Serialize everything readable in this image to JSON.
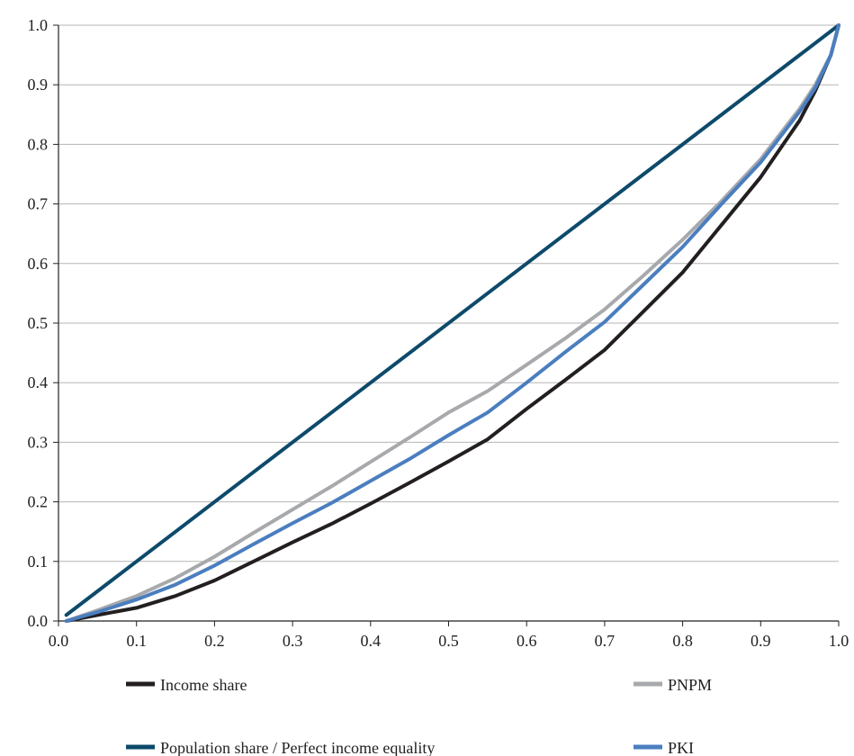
{
  "chart_data": {
    "type": "line",
    "title": "",
    "xlabel": "",
    "ylabel": "",
    "xlim": [
      0.0,
      1.0
    ],
    "ylim": [
      0.0,
      1.0
    ],
    "grid": "horizontal",
    "legend_position": "bottom",
    "x_ticks": [
      "0.0",
      "0.1",
      "0.2",
      "0.3",
      "0.4",
      "0.5",
      "0.6",
      "0.7",
      "0.8",
      "0.9",
      "1.0"
    ],
    "y_ticks": [
      "0.0",
      "0.1",
      "0.2",
      "0.3",
      "0.4",
      "0.5",
      "0.6",
      "0.7",
      "0.8",
      "0.9",
      "1.0"
    ],
    "series": [
      {
        "name": "Income share",
        "color": "#231f20",
        "points": [
          [
            0.01,
            0.0
          ],
          [
            0.05,
            0.01
          ],
          [
            0.1,
            0.022
          ],
          [
            0.15,
            0.042
          ],
          [
            0.2,
            0.068
          ],
          [
            0.25,
            0.1
          ],
          [
            0.3,
            0.132
          ],
          [
            0.35,
            0.163
          ],
          [
            0.4,
            0.197
          ],
          [
            0.45,
            0.232
          ],
          [
            0.5,
            0.268
          ],
          [
            0.55,
            0.305
          ],
          [
            0.6,
            0.356
          ],
          [
            0.65,
            0.405
          ],
          [
            0.7,
            0.455
          ],
          [
            0.75,
            0.52
          ],
          [
            0.8,
            0.585
          ],
          [
            0.85,
            0.665
          ],
          [
            0.9,
            0.745
          ],
          [
            0.95,
            0.84
          ],
          [
            0.97,
            0.89
          ],
          [
            0.99,
            0.95
          ],
          [
            1.0,
            1.0
          ]
        ]
      },
      {
        "name": "Population share / Perfect income equality",
        "color": "#0d4a6b",
        "points": [
          [
            0.01,
            0.01
          ],
          [
            1.0,
            1.0
          ]
        ]
      },
      {
        "name": "PNPM",
        "color": "#a7a9ac",
        "points": [
          [
            0.01,
            0.0
          ],
          [
            0.05,
            0.018
          ],
          [
            0.1,
            0.042
          ],
          [
            0.15,
            0.072
          ],
          [
            0.2,
            0.108
          ],
          [
            0.25,
            0.148
          ],
          [
            0.3,
            0.187
          ],
          [
            0.35,
            0.226
          ],
          [
            0.4,
            0.267
          ],
          [
            0.45,
            0.308
          ],
          [
            0.5,
            0.35
          ],
          [
            0.55,
            0.386
          ],
          [
            0.6,
            0.43
          ],
          [
            0.65,
            0.475
          ],
          [
            0.7,
            0.523
          ],
          [
            0.75,
            0.58
          ],
          [
            0.8,
            0.64
          ],
          [
            0.85,
            0.705
          ],
          [
            0.9,
            0.775
          ],
          [
            0.95,
            0.86
          ],
          [
            0.97,
            0.9
          ],
          [
            0.99,
            0.95
          ],
          [
            1.0,
            1.0
          ]
        ]
      },
      {
        "name": "PKI",
        "color": "#4a7ebf",
        "points": [
          [
            0.01,
            0.0
          ],
          [
            0.05,
            0.015
          ],
          [
            0.1,
            0.036
          ],
          [
            0.15,
            0.061
          ],
          [
            0.2,
            0.093
          ],
          [
            0.25,
            0.129
          ],
          [
            0.3,
            0.164
          ],
          [
            0.35,
            0.198
          ],
          [
            0.4,
            0.235
          ],
          [
            0.45,
            0.272
          ],
          [
            0.5,
            0.312
          ],
          [
            0.55,
            0.35
          ],
          [
            0.6,
            0.4
          ],
          [
            0.65,
            0.452
          ],
          [
            0.7,
            0.502
          ],
          [
            0.75,
            0.565
          ],
          [
            0.8,
            0.628
          ],
          [
            0.85,
            0.7
          ],
          [
            0.9,
            0.77
          ],
          [
            0.95,
            0.855
          ],
          [
            0.97,
            0.895
          ],
          [
            0.99,
            0.95
          ],
          [
            1.0,
            1.0
          ]
        ]
      }
    ],
    "legend": {
      "left": [
        "Income share",
        "Population share / Perfect income equality"
      ],
      "right": [
        "PNPM",
        "PKI"
      ]
    }
  }
}
